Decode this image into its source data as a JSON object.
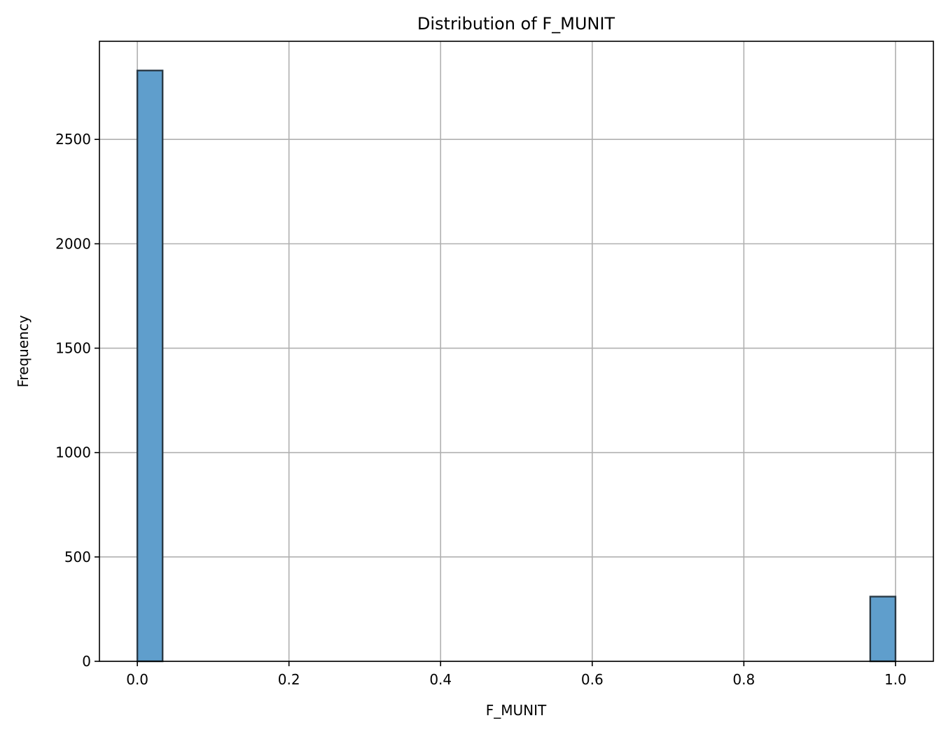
{
  "chart_data": {
    "type": "bar",
    "title": "Distribution of F_MUNIT",
    "xlabel": "F_MUNIT",
    "ylabel": "Frequency",
    "xlim": [
      -0.05,
      1.05
    ],
    "ylim": [
      0,
      2970
    ],
    "x_ticks": [
      {
        "value": 0.0,
        "label": "0.0"
      },
      {
        "value": 0.2,
        "label": "0.2"
      },
      {
        "value": 0.4,
        "label": "0.4"
      },
      {
        "value": 0.6,
        "label": "0.6"
      },
      {
        "value": 0.8,
        "label": "0.8"
      },
      {
        "value": 1.0,
        "label": "1.0"
      }
    ],
    "y_ticks": [
      {
        "value": 0,
        "label": "0"
      },
      {
        "value": 500,
        "label": "500"
      },
      {
        "value": 1000,
        "label": "1000"
      },
      {
        "value": 1500,
        "label": "1500"
      },
      {
        "value": 2000,
        "label": "2000"
      },
      {
        "value": 2500,
        "label": "2500"
      }
    ],
    "grid": true,
    "bins": [
      {
        "x0": 0.0,
        "x1": 0.0333,
        "count": 2830
      },
      {
        "x0": 0.9667,
        "x1": 1.0,
        "count": 310
      }
    ],
    "bar_color": "#5f9ecc",
    "edge_color": "#2a3a46",
    "grid_color": "#b0b0b0"
  }
}
